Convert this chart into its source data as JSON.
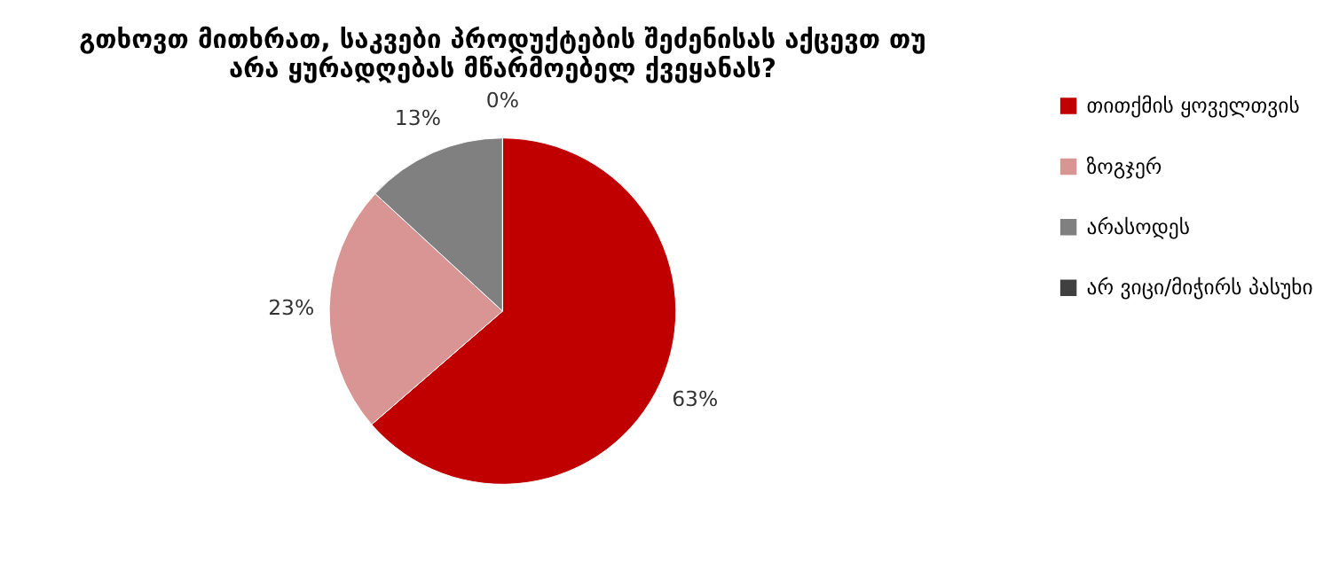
{
  "chart_data": {
    "type": "pie",
    "title": "გთხოვთ მითხრათ, საკვები პროდუქტების შეძენისას აქცევთ თუ არა ყურადღებას მწარმოებელ ქვეყანას?",
    "categories": [
      "თითქმის ყოველთვის",
      "ზოგჯერ",
      "არასოდეს",
      "არ ვიცი/მიჭირს პასუხი"
    ],
    "values": [
      63,
      23,
      13,
      0
    ],
    "colors": [
      "#c00000",
      "#d99594",
      "#808080",
      "#404040"
    ],
    "value_labels": [
      "63%",
      "23%",
      "13%",
      "0%"
    ],
    "legend": "right"
  }
}
